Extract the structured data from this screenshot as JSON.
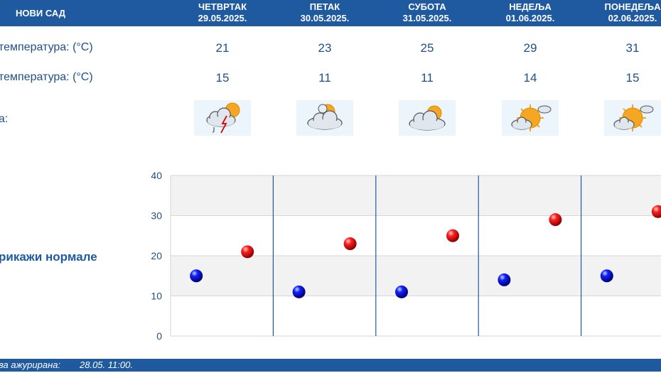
{
  "header": {
    "city": "НОВИ САД"
  },
  "days": [
    {
      "name": "ЧЕТВРТАК",
      "date": "29.05.2025.",
      "max": "21",
      "min": "15",
      "icon": "thunderstorm-partly-cloudy-icon"
    },
    {
      "name": "ПЕТАК",
      "date": "30.05.2025.",
      "max": "23",
      "min": "11",
      "icon": "partly-cloudy-icon"
    },
    {
      "name": "СУБОТА",
      "date": "31.05.2025.",
      "max": "25",
      "min": "11",
      "icon": "cloudy-sun-icon"
    },
    {
      "name": "НЕДЕЉА",
      "date": "01.06.2025.",
      "max": "29",
      "min": "14",
      "icon": "mostly-sunny-icon"
    },
    {
      "name": "ПОНЕДЕЉА",
      "date": "02.06.2025.",
      "max": "31",
      "min": "15",
      "icon": "mostly-sunny-icon"
    }
  ],
  "labels": {
    "max_temp": "температура: (°C)",
    "min_temp": "температура: (°C)",
    "weather": "а:",
    "show_normals": "рикажи нормале"
  },
  "footer": {
    "updated_label": "ва ажурирана:",
    "updated_value": "28.05. 11:00."
  },
  "colors": {
    "header": "#1f5aa0",
    "max_marker": "#d40000",
    "min_marker": "#0000c8",
    "divider": "#1f5aa0"
  },
  "chart_data": {
    "type": "scatter",
    "categories": [
      "29.05.2025.",
      "30.05.2025.",
      "31.05.2025.",
      "01.06.2025.",
      "02.06.2025."
    ],
    "series": [
      {
        "values": [
          21,
          23,
          25,
          29,
          31
        ],
        "color": "#d40000"
      },
      {
        "values": [
          15,
          11,
          11,
          14,
          15
        ],
        "color": "#0000c8"
      }
    ],
    "yticks": [
      0,
      10,
      20,
      30,
      40
    ],
    "ylim": [
      0,
      40
    ],
    "grid": true
  }
}
